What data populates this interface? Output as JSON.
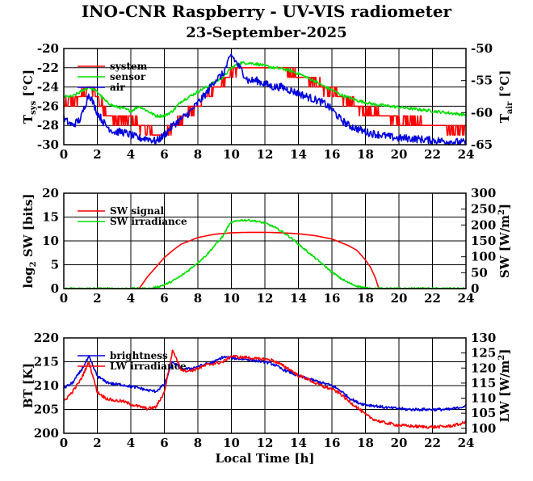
{
  "title": "INO-CNR Raspberry - UV-VIS radiometer",
  "subtitle": "23-September-2025",
  "xlabel": "Local Time [h]",
  "colors": {
    "red": "#ff0000",
    "green": "#00dd00",
    "blue": "#0000dd"
  },
  "chart_data": [
    {
      "type": "line",
      "id": "temperature",
      "xlim": [
        0,
        24
      ],
      "xticks": [
        "0",
        "2",
        "4",
        "6",
        "8",
        "10",
        "12",
        "14",
        "16",
        "18",
        "20",
        "22",
        "24"
      ],
      "ylim": [
        -30,
        -20
      ],
      "yticks": [
        "-30",
        "-28",
        "-26",
        "-24",
        "-22",
        "-20"
      ],
      "y2lim": [
        -65,
        -50
      ],
      "y2ticks": [
        "-65",
        "-60",
        "-55",
        "-50"
      ],
      "ylabel_main": "T",
      "ylabel_sub": "sys",
      "ylabel_unit": "[°C]",
      "y2label_main": "T",
      "y2label_sub": "air",
      "y2label_unit": "[°C]",
      "series": [
        {
          "name": "system",
          "color": "#ff0000",
          "axis": "left",
          "noise": 0.5,
          "step": 1,
          "x": [
            0,
            0.5,
            1,
            1.5,
            2,
            2.5,
            3,
            3.5,
            4,
            4.5,
            5,
            5.5,
            6,
            6.5,
            7,
            7.5,
            8,
            8.5,
            9,
            9.5,
            10,
            10.5,
            11,
            11.5,
            12,
            12.5,
            13,
            13.5,
            14,
            14.5,
            15,
            15.5,
            16,
            16.5,
            17,
            17.5,
            18,
            18.5,
            19,
            19.5,
            20,
            20.5,
            21,
            21.5,
            22,
            22.5,
            23,
            23.5,
            24
          ],
          "y": [
            -26,
            -25.5,
            -25,
            -24,
            -25,
            -26.5,
            -27.5,
            -27.5,
            -27.5,
            -28,
            -28.5,
            -29,
            -29,
            -28,
            -27.5,
            -26.5,
            -26,
            -25,
            -24.5,
            -23.5,
            -22.5,
            -22,
            -22,
            -22,
            -22,
            -22,
            -22,
            -22.5,
            -23,
            -23,
            -23.5,
            -24,
            -24.5,
            -25,
            -25.5,
            -26,
            -26.5,
            -26.5,
            -27,
            -27,
            -27.5,
            -27.5,
            -27.5,
            -28,
            -28,
            -28,
            -28.5,
            -28.5,
            -28.5
          ]
        },
        {
          "name": "sensor",
          "color": "#00dd00",
          "axis": "left",
          "noise": 0.15,
          "step": 0,
          "x": [
            0,
            0.5,
            1,
            1.5,
            2,
            2.5,
            3,
            3.5,
            4,
            4.5,
            5,
            5.5,
            6,
            6.5,
            7,
            7.5,
            8,
            8.5,
            9,
            9.5,
            10,
            10.5,
            11,
            11.5,
            12,
            12.5,
            13,
            13.5,
            14,
            14.5,
            15,
            15.5,
            16,
            16.5,
            17,
            17.5,
            18,
            18.5,
            19,
            19.5,
            20,
            20.5,
            21,
            21.5,
            22,
            22.5,
            23,
            23.5,
            24
          ],
          "y": [
            -25,
            -25,
            -24.5,
            -24,
            -24.5,
            -25.5,
            -26,
            -26.2,
            -26.5,
            -26,
            -26.5,
            -27,
            -27,
            -26.5,
            -25.5,
            -25,
            -24.5,
            -24,
            -23.5,
            -23,
            -22,
            -21.5,
            -21.5,
            -21.6,
            -21.8,
            -22,
            -22.1,
            -22.3,
            -22.6,
            -23,
            -23.4,
            -23.9,
            -24.3,
            -24.8,
            -25.1,
            -25.4,
            -25.6,
            -25.8,
            -25.9,
            -26,
            -26.1,
            -26.2,
            -26.3,
            -26.4,
            -26.5,
            -26.6,
            -26.7,
            -26.8,
            -26.9
          ]
        },
        {
          "name": "air",
          "color": "#0000dd",
          "axis": "right",
          "noise": 0.6,
          "step": 0,
          "x": [
            0,
            0.5,
            1,
            1.5,
            2,
            2.5,
            3,
            3.5,
            4,
            4.5,
            5,
            5.5,
            6,
            6.5,
            7,
            7.5,
            8,
            8.5,
            9,
            9.5,
            10,
            10.5,
            11,
            11.5,
            12,
            12.5,
            13,
            13.5,
            14,
            14.5,
            15,
            15.5,
            16,
            16.5,
            17,
            17.5,
            18,
            18.5,
            19,
            19.5,
            20,
            20.5,
            21,
            21.5,
            22,
            22.5,
            23,
            23.5,
            24
          ],
          "y": [
            -61,
            -62,
            -61,
            -57,
            -60,
            -62,
            -63,
            -63,
            -63.5,
            -64,
            -64,
            -64.5,
            -63.5,
            -62,
            -61,
            -60,
            -58.5,
            -57,
            -55,
            -54,
            -51,
            -53,
            -55,
            -55,
            -55.5,
            -56,
            -56,
            -56.5,
            -57,
            -57.5,
            -58,
            -58.5,
            -59.5,
            -61,
            -62,
            -62.5,
            -63,
            -63.3,
            -63.5,
            -63.8,
            -64,
            -64,
            -64.1,
            -64.2,
            -64.3,
            -64.4,
            -64.5,
            -64.6,
            -64.7
          ]
        }
      ]
    },
    {
      "type": "line",
      "id": "shortwave",
      "xlim": [
        0,
        24
      ],
      "xticks": [
        "0",
        "2",
        "4",
        "6",
        "8",
        "10",
        "12",
        "14",
        "16",
        "18",
        "20",
        "22",
        "24"
      ],
      "ylim": [
        0,
        20
      ],
      "yticks": [
        "0",
        "5",
        "10",
        "15",
        "20"
      ],
      "y2lim": [
        0,
        300
      ],
      "y2ticks": [
        "0",
        "50",
        "100",
        "150",
        "200",
        "250",
        "300"
      ],
      "ylabel_main": "log",
      "ylabel_sub": "2",
      "ylabel_unit": "SW [bits]",
      "y2label_main": "SW [W/m",
      "y2label_sup": "2",
      "y2label_unit": "]",
      "series": [
        {
          "name": "SW signal",
          "color": "#ff0000",
          "axis": "left",
          "noise": 0,
          "step": 0,
          "x": [
            0,
            4.5,
            5,
            5.5,
            6,
            6.5,
            7,
            8,
            9,
            10,
            11,
            12,
            13,
            14,
            15,
            16,
            17,
            17.5,
            18,
            18.3,
            18.6,
            18.8,
            24
          ],
          "y": [
            0,
            0,
            2.5,
            4.5,
            6.5,
            8,
            9.3,
            10.7,
            11.4,
            11.7,
            11.8,
            11.8,
            11.7,
            11.5,
            11.1,
            10.4,
            9,
            8,
            6,
            4.5,
            2.2,
            0,
            0
          ]
        },
        {
          "name": "SW irradiance",
          "color": "#00dd00",
          "axis": "right",
          "noise": 3,
          "step": 0,
          "x": [
            0,
            5.2,
            5.5,
            6,
            6.5,
            7,
            7.5,
            8,
            8.5,
            9,
            9.5,
            9.8,
            10,
            10.3,
            10.5,
            11,
            11.5,
            12,
            12.5,
            13,
            13.5,
            14,
            14.5,
            15,
            15.5,
            16,
            16.5,
            17,
            17.5,
            18,
            18.4,
            24
          ],
          "y": [
            0,
            0,
            4,
            12,
            24,
            40,
            60,
            82,
            105,
            135,
            165,
            195,
            208,
            212,
            215,
            215,
            212,
            206,
            195,
            180,
            162,
            140,
            118,
            96,
            74,
            52,
            33,
            18,
            8,
            2,
            0,
            0
          ]
        }
      ]
    },
    {
      "type": "line",
      "id": "brightness",
      "xlim": [
        0,
        24
      ],
      "xticks": [
        "0",
        "2",
        "4",
        "6",
        "8",
        "10",
        "12",
        "14",
        "16",
        "18",
        "20",
        "22",
        "24"
      ],
      "ylim": [
        200,
        220
      ],
      "yticks": [
        "200",
        "205",
        "210",
        "215",
        "220"
      ],
      "y2lim": [
        98.33,
        130
      ],
      "y2ticks": [
        "100",
        "105",
        "110",
        "115",
        "120",
        "125",
        "130"
      ],
      "ylabel_main": "BT [K]",
      "y2label_main": "LW [W/m",
      "y2label_sup": "2",
      "y2label_unit": "]",
      "series": [
        {
          "name": "brightness",
          "color": "#0000dd",
          "axis": "left",
          "noise": 0.3,
          "step": 0,
          "x": [
            0,
            0.5,
            1,
            1.5,
            2,
            2.5,
            3,
            3.5,
            4,
            4.5,
            5,
            5.5,
            6,
            6.5,
            7,
            7.5,
            8,
            8.5,
            9,
            9.5,
            10,
            10.5,
            11,
            11.5,
            12,
            12.5,
            13,
            13.5,
            14,
            14.5,
            15,
            15.5,
            16,
            16.5,
            17,
            17.5,
            18,
            18.5,
            19,
            19.5,
            20,
            20.5,
            21,
            21.5,
            22,
            22.5,
            23,
            23.5,
            24
          ],
          "y": [
            209.5,
            210.5,
            213,
            216,
            212,
            210.8,
            210.3,
            210.2,
            209.8,
            209.5,
            209,
            208.8,
            210.2,
            215,
            213.5,
            213.5,
            214,
            214.5,
            215,
            216,
            215.8,
            215.6,
            215.5,
            215.2,
            215,
            214.5,
            213.5,
            212.8,
            212,
            211.5,
            211,
            210.5,
            210,
            209,
            207.5,
            206.5,
            206,
            205.8,
            205.5,
            205.3,
            205.2,
            205,
            205,
            205,
            205,
            205,
            205,
            205.3,
            205.8
          ]
        },
        {
          "name": "LW irradiance",
          "color": "#ff0000",
          "axis": "right",
          "noise": 0.5,
          "step": 0,
          "x": [
            0,
            0.5,
            1,
            1.5,
            2,
            2.5,
            3,
            3.5,
            4,
            4.5,
            5,
            5.5,
            6,
            6.5,
            7,
            7.5,
            8,
            8.5,
            9,
            9.5,
            10,
            10.5,
            11,
            11.5,
            12,
            12.5,
            13,
            13.5,
            14,
            14.5,
            15,
            15.5,
            16,
            16.5,
            17,
            17.5,
            18,
            18.5,
            19,
            19.5,
            20,
            20.5,
            21,
            21.5,
            22,
            22.5,
            23,
            23.5,
            24
          ],
          "y": [
            109,
            112,
            116,
            122,
            112,
            110,
            109.2,
            109,
            108,
            107.2,
            106.5,
            107,
            112,
            126,
            119.5,
            119,
            119.8,
            121,
            121.5,
            122,
            124,
            123.6,
            123.5,
            123,
            123,
            122.5,
            121,
            119.5,
            117.5,
            116.5,
            115,
            113.8,
            113,
            111.5,
            109,
            107,
            104.5,
            103,
            102,
            101.5,
            101,
            100.8,
            100.6,
            100.5,
            100.4,
            100.5,
            100.7,
            101.2,
            102
          ]
        }
      ]
    }
  ]
}
